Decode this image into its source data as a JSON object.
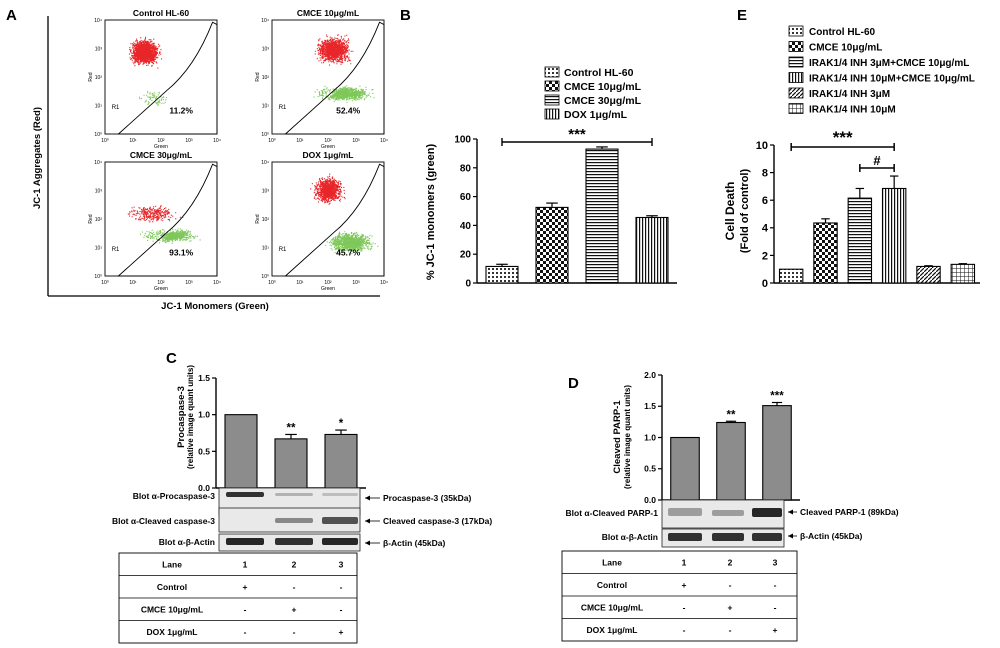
{
  "panels": {
    "A": "A",
    "B": "B",
    "C": "C",
    "D": "D",
    "E": "E"
  },
  "panel_a": {
    "ylabel": "JC-1 Aggregates (Red)",
    "xlabel": "JC-1 Monomers (Green)",
    "gate_label": "R1",
    "tick_labels": [
      "10⁰",
      "10¹",
      "10²",
      "10³",
      "10⁴"
    ],
    "axis_green": "Green",
    "axis_red": "Red",
    "plots": [
      {
        "title": "Control HL-60",
        "pct": "11.2%"
      },
      {
        "title": "CMCE  10μg/mL",
        "pct": "52.4%"
      },
      {
        "title": "CMCE  30μg/mL",
        "pct": "93.1%"
      },
      {
        "title": "DOX 1μg/mL",
        "pct": "45.7%"
      }
    ],
    "colors": {
      "red": "#e8262a",
      "green": "#7ec85a"
    }
  },
  "chart_data": [
    {
      "id": "B",
      "type": "bar",
      "title": "",
      "ylabel": "% JC-1 monomers (green)",
      "ylim": [
        0,
        100
      ],
      "yticks": [
        "0",
        "20",
        "40",
        "60",
        "80",
        "100"
      ],
      "categories": [
        "Control HL-60",
        "CMCE 10μg/mL",
        "CMCE 30μg/mL",
        "DOX 1μg/mL"
      ],
      "values": [
        11.5,
        52.5,
        93,
        45.5
      ],
      "errors": [
        1.5,
        3,
        1.5,
        1.2
      ],
      "annotations": [
        "***"
      ]
    },
    {
      "id": "C",
      "type": "bar",
      "ylabel": "Procaspase-3",
      "ylabel2": "(relative image quant units)",
      "ylim": [
        0,
        1.5
      ],
      "yticks": [
        "0.0",
        "0.5",
        "1.0",
        "1.5"
      ],
      "categories": [
        "1",
        "2",
        "3"
      ],
      "values": [
        1.0,
        0.67,
        0.73
      ],
      "errors": [
        0,
        0.06,
        0.06
      ],
      "annotations": [
        "",
        "**",
        "*"
      ]
    },
    {
      "id": "D",
      "type": "bar",
      "ylabel": "Cleaved PARP-1",
      "ylabel2": "(relative image quant units)",
      "ylim": [
        0,
        2.0
      ],
      "yticks": [
        "0.0",
        "0.5",
        "1.0",
        "1.5",
        "2.0"
      ],
      "categories": [
        "1",
        "2",
        "3"
      ],
      "values": [
        1.0,
        1.24,
        1.51
      ],
      "errors": [
        0,
        0.02,
        0.05
      ],
      "annotations": [
        "",
        "**",
        "***"
      ]
    },
    {
      "id": "E",
      "type": "bar",
      "ylabel": "Cell Death",
      "ylabel2": "(Fold of control)",
      "ylim": [
        0,
        10
      ],
      "yticks": [
        "0",
        "2",
        "4",
        "6",
        "8",
        "10"
      ],
      "categories": [
        "Control HL-60",
        "CMCE 10μg/mL",
        "IRAK1/4 INH 3μM+CMCE 10μg/mL",
        "IRAK1/4 INH 10μM+CMCE 10μg/mL",
        "IRAK1/4 INH 3μM",
        "IRAK1/4 INH 10μM"
      ],
      "values": [
        1.0,
        4.35,
        6.15,
        6.85,
        1.2,
        1.35
      ],
      "errors": [
        0,
        0.3,
        0.7,
        0.9,
        0.05,
        0.05
      ],
      "annotations": [
        "***",
        "#"
      ]
    }
  ],
  "panel_c_blot": {
    "rows": [
      "Blot α-Procaspase-3",
      "Blot α-Cleaved caspase-3",
      "Blot α-β-Actin"
    ],
    "arrows": [
      "Procaspase-3 (35kDa)",
      "Cleaved caspase-3 (17kDa)",
      "β-Actin (45kDa)"
    ],
    "table": [
      [
        "Lane",
        "1",
        "2",
        "3"
      ],
      [
        "Control",
        "+",
        "-",
        "-"
      ],
      [
        "CMCE 10μg/mL",
        "-",
        "+",
        "-"
      ],
      [
        "DOX 1μg/mL",
        "-",
        "-",
        "+"
      ]
    ]
  },
  "panel_d_blot": {
    "rows": [
      "Blot α-Cleaved PARP-1",
      "Blot α-β-Actin"
    ],
    "arrows": [
      "Cleaved PARP-1 (89kDa)",
      "β-Actin (45kDa)"
    ],
    "table": [
      [
        "Lane",
        "1",
        "2",
        "3"
      ],
      [
        "Control",
        "+",
        "-",
        "-"
      ],
      [
        "CMCE 10μg/mL",
        "-",
        "+",
        "-"
      ],
      [
        "DOX 1μg/mL",
        "-",
        "-",
        "+"
      ]
    ]
  }
}
